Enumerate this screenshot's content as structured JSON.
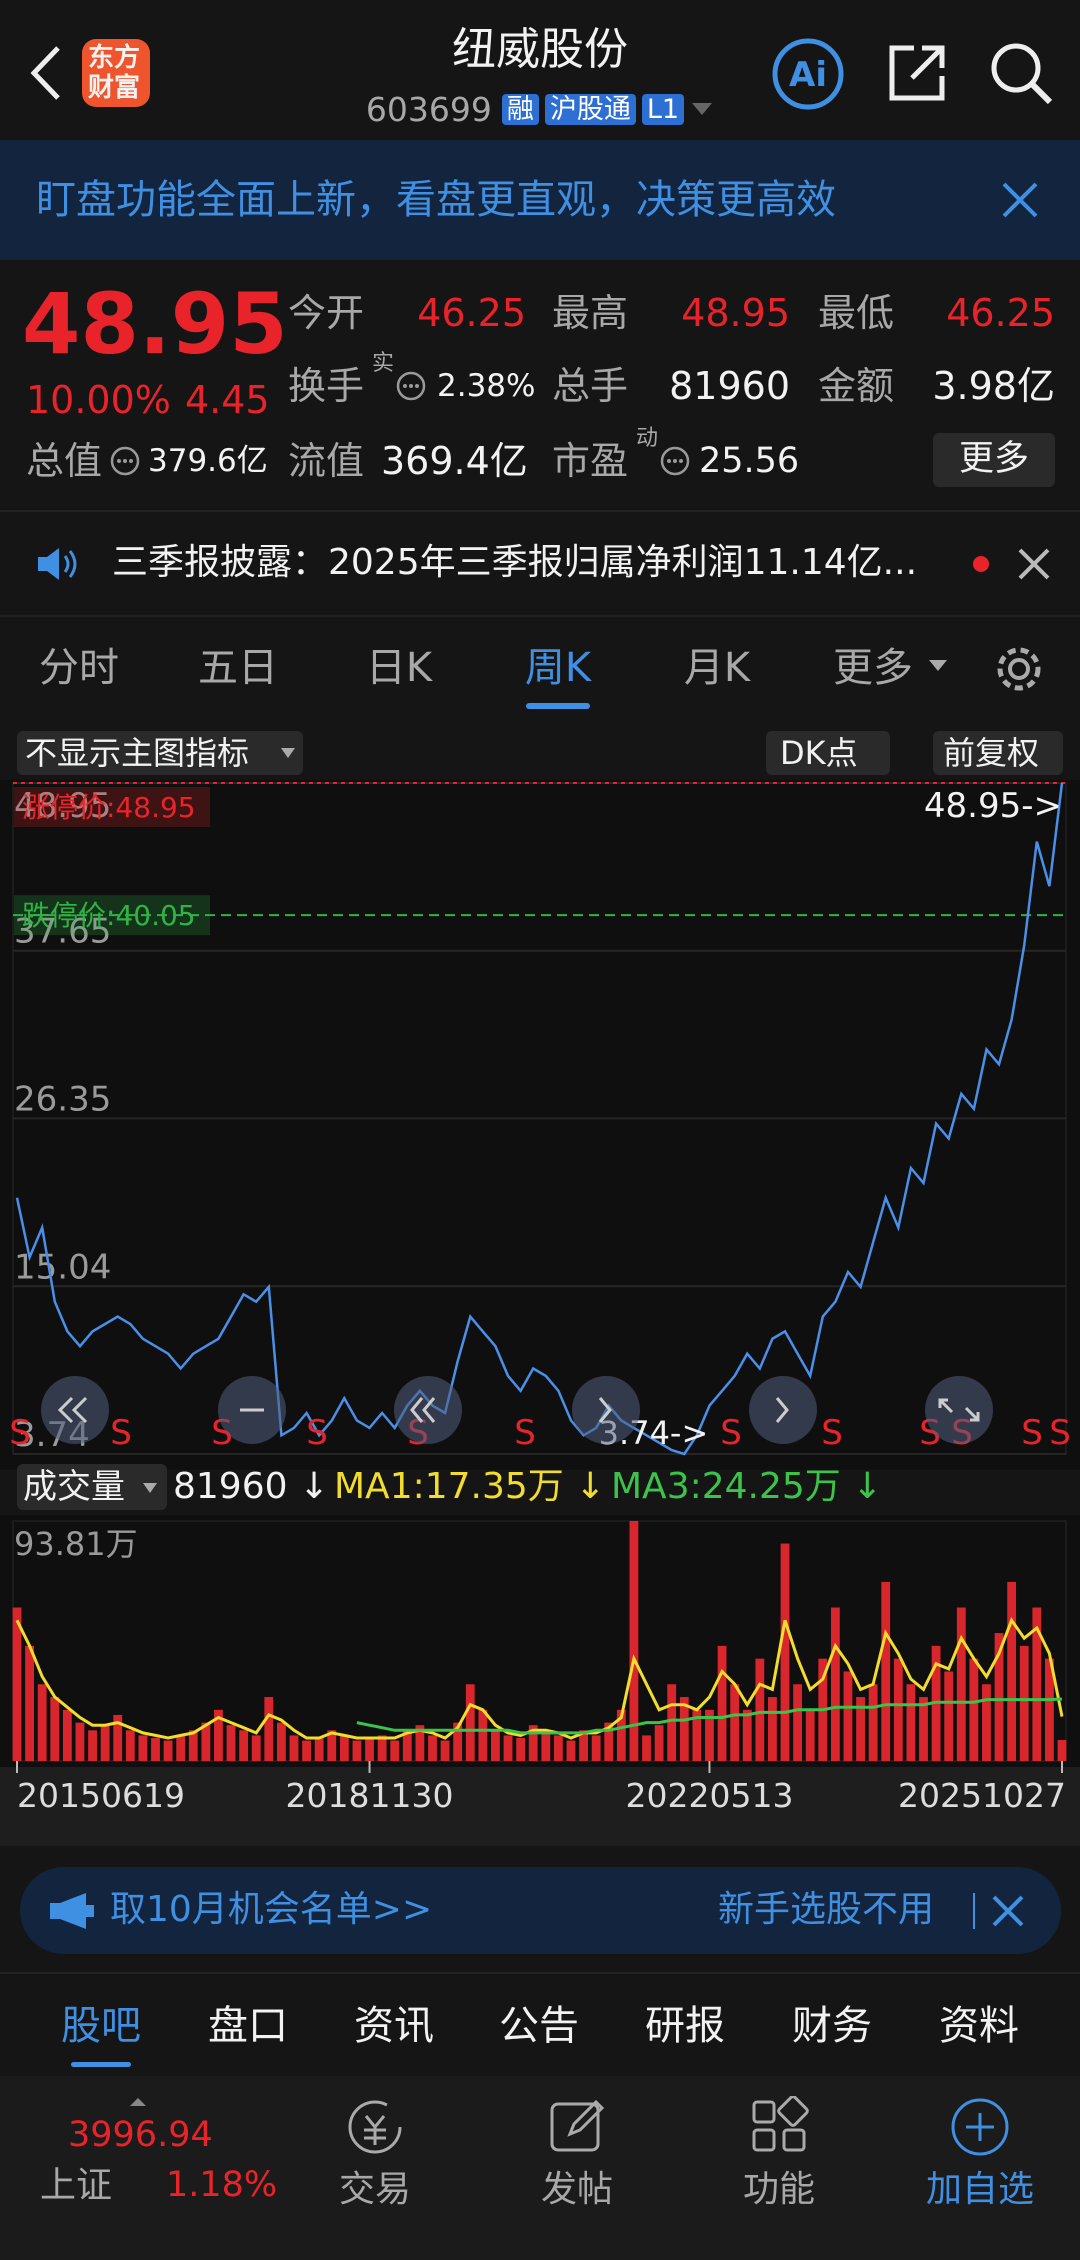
{
  "header": {
    "logo": [
      "东方",
      "财富"
    ],
    "title": "纽威股份",
    "code": "603699",
    "badges": [
      "融",
      "沪股通",
      "L1"
    ],
    "ai": "Ai"
  },
  "banner": {
    "text": "盯盘功能全面上新，看盘更直观，决策更高效"
  },
  "quote": {
    "price": "48.95",
    "change_pct": "10.00%",
    "change": "4.45",
    "fields": [
      {
        "label": "今开",
        "value": "46.25"
      },
      {
        "label": "最高",
        "value": "48.95"
      },
      {
        "label": "最低",
        "value": "46.25"
      },
      {
        "label": "换手",
        "sup": "实",
        "value": "2.38%"
      },
      {
        "label": "总手",
        "value": "81960"
      },
      {
        "label": "金额",
        "value": "3.98亿"
      },
      {
        "label": "总值",
        "value": "379.6亿"
      },
      {
        "label": "流值",
        "value": "369.4亿"
      },
      {
        "label": "市盈",
        "sup": "动",
        "value": "25.56"
      }
    ],
    "more": "更多"
  },
  "news": {
    "text": "三季报披露：2025年三季报归属净利润11.14亿..."
  },
  "tabs": {
    "items": [
      "分时",
      "五日",
      "日K",
      "周K",
      "月K",
      "更多"
    ]
  },
  "toolbar": [
    "不显示主图指标",
    "DK点",
    "前复权"
  ],
  "chart_data": [
    {
      "type": "line",
      "color": "#4a8fe8",
      "values": [
        21,
        17,
        19,
        14,
        12,
        11,
        12,
        12.5,
        13,
        12.5,
        11.5,
        11,
        10.5,
        9.5,
        10.5,
        11,
        11.5,
        13,
        14.5,
        14,
        15,
        5,
        5.5,
        6.5,
        5,
        6,
        7.5,
        6,
        5.5,
        6.5,
        5.5,
        7,
        8,
        7,
        6.5,
        10,
        13,
        12,
        11,
        9,
        8,
        9.5,
        9,
        8,
        6,
        5,
        5.5,
        7,
        6,
        5.5,
        5,
        4.5,
        4,
        3.74,
        5,
        7,
        8,
        9,
        10.5,
        9.5,
        11.5,
        12,
        10.5,
        9,
        13,
        14,
        16,
        15,
        18,
        21,
        19,
        23,
        22,
        26,
        25,
        28,
        27,
        31,
        30,
        33,
        38,
        45,
        42,
        48.95
      ],
      "ylim": [
        3.74,
        48.95
      ],
      "yticks": [
        3.74,
        15.04,
        26.35,
        37.65,
        48.95
      ],
      "grid": true,
      "limit_up": {
        "label": "涨停价:48.95",
        "value": 48.95,
        "color": "#e8242a"
      },
      "limit_down": {
        "label": "跌停价:40.05",
        "value": 40.05,
        "color": "#2fb344"
      },
      "max_label": "48.95->",
      "min_label": "3.74->",
      "signals": [
        "S",
        "S",
        "S",
        "S",
        "S",
        "S",
        "S",
        "S",
        "S",
        "S",
        "S",
        "S"
      ]
    },
    {
      "type": "bar",
      "title": "成交量",
      "volume_text": "81960 ↓",
      "color": "#d9262c",
      "categories": [
        "20150619",
        null,
        null,
        null,
        null,
        null,
        null,
        null,
        null,
        null,
        null,
        null,
        null,
        null,
        null,
        null,
        null,
        null,
        null,
        null,
        null,
        null,
        null,
        null,
        null,
        null,
        null,
        null,
        "20181130",
        null,
        null,
        null,
        null,
        null,
        null,
        null,
        null,
        null,
        null,
        null,
        null,
        null,
        null,
        null,
        null,
        null,
        null,
        null,
        null,
        null,
        null,
        null,
        null,
        null,
        null,
        "20220513",
        null,
        null,
        null,
        null,
        null,
        null,
        null,
        null,
        null,
        null,
        null,
        null,
        null,
        null,
        null,
        null,
        null,
        null,
        null,
        null,
        null,
        null,
        null,
        null,
        null,
        null,
        null,
        "20251027"
      ],
      "values": [
        60,
        45,
        30,
        25,
        20,
        15,
        12,
        14,
        18,
        12,
        10,
        9,
        8,
        10,
        12,
        15,
        20,
        14,
        12,
        10,
        25,
        15,
        10,
        8,
        9,
        12,
        10,
        8,
        9,
        10,
        8,
        12,
        14,
        10,
        8,
        15,
        30,
        20,
        12,
        10,
        9,
        14,
        12,
        10,
        8,
        12,
        10,
        15,
        20,
        93.81,
        10,
        14,
        30,
        25,
        20,
        20,
        45,
        30,
        20,
        40,
        25,
        85,
        30,
        20,
        40,
        60,
        35,
        25,
        30,
        70,
        40,
        30,
        25,
        45,
        35,
        60,
        40,
        30,
        50,
        70,
        45,
        60,
        40,
        8.196
      ],
      "ylim": [
        0,
        93.81
      ],
      "yticks": [
        {
          "value": 93.81,
          "label": "93.81万"
        }
      ],
      "lines": [
        {
          "name": "MA1:17.35万 ↓",
          "color": "#f2dc2e",
          "values": [
            55,
            45,
            33,
            25,
            21,
            17,
            14,
            14,
            15,
            13,
            11,
            10,
            9,
            10,
            11,
            14,
            17,
            15,
            13,
            11,
            18,
            16,
            12,
            9,
            9,
            11,
            10,
            9,
            9,
            9,
            9,
            11,
            12,
            11,
            9,
            13,
            22,
            20,
            14,
            11,
            10,
            12,
            12,
            11,
            9,
            11,
            11,
            13,
            17,
            40,
            30,
            20,
            22,
            22,
            20,
            25,
            35,
            30,
            22,
            30,
            28,
            55,
            40,
            28,
            32,
            45,
            38,
            28,
            30,
            50,
            42,
            32,
            28,
            38,
            36,
            48,
            40,
            33,
            42,
            55,
            48,
            52,
            42,
            17.35
          ]
        },
        {
          "name": "MA3:24.25万 ↓",
          "color": "#3cc44a",
          "values": [
            null,
            null,
            null,
            null,
            null,
            null,
            null,
            null,
            null,
            null,
            null,
            null,
            null,
            null,
            null,
            null,
            null,
            null,
            null,
            null,
            null,
            null,
            null,
            null,
            null,
            null,
            null,
            15,
            14,
            13,
            12,
            12,
            12,
            12,
            12,
            12,
            12,
            12,
            12,
            12,
            11,
            11,
            11,
            11,
            11,
            11,
            12,
            12,
            13,
            14,
            15,
            15,
            16,
            16,
            17,
            17,
            17,
            18,
            18,
            19,
            19,
            19,
            20,
            20,
            20,
            21,
            21,
            21,
            21,
            22,
            22,
            22,
            22,
            23,
            23,
            23,
            23,
            24,
            24,
            24,
            24,
            24,
            24,
            24.25
          ]
        }
      ]
    }
  ],
  "ad": {
    "left": "取10月机会名单>>",
    "right": "新手选股不用"
  },
  "bottom_tabs": {
    "items": [
      "股吧",
      "盘口",
      "资讯",
      "公告",
      "研报",
      "财务",
      "资料"
    ]
  },
  "nav": {
    "index_value": "3996.94",
    "index_name": "上证",
    "index_change": "1.18%",
    "items": [
      "交易",
      "发帖",
      "功能",
      "加自选"
    ]
  }
}
